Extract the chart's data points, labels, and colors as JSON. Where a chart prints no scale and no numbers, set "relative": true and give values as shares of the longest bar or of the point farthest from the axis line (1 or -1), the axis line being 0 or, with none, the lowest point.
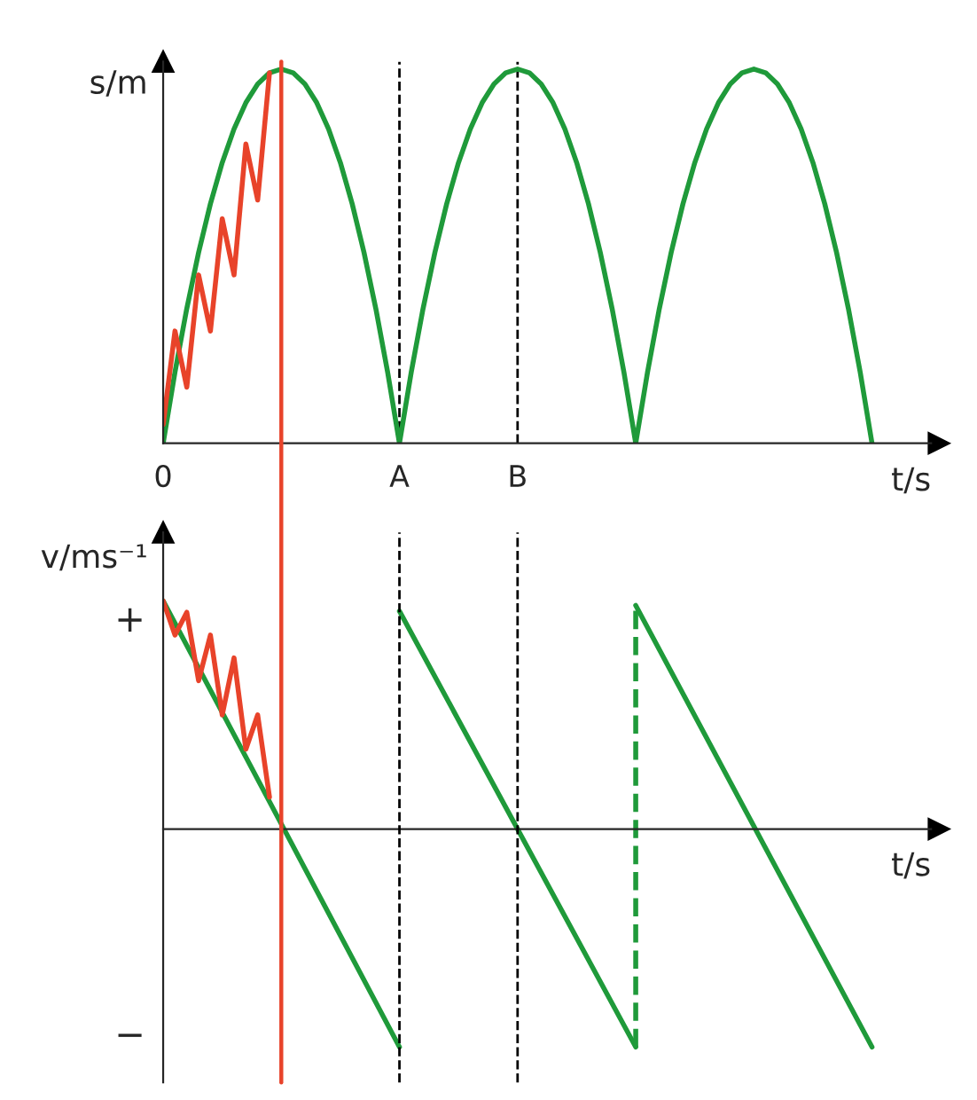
{
  "chart_data": [
    {
      "type": "line",
      "ylabel": "s/m",
      "xlabel": "t/s",
      "relative": true,
      "grid": false,
      "legend": false,
      "marker": "none",
      "line_style": "solid",
      "categories": [
        "0",
        null,
        null,
        null,
        null,
        null,
        null,
        null,
        null,
        null,
        null,
        null,
        null,
        null,
        null,
        null,
        null,
        null,
        null,
        null,
        "A",
        null,
        null,
        null,
        null,
        null,
        null,
        null,
        null,
        null,
        "B",
        null,
        null,
        null,
        null,
        null,
        null,
        null,
        null,
        null,
        null,
        null,
        null,
        null,
        null,
        null,
        null,
        null,
        null,
        null,
        null,
        null,
        null,
        null,
        null,
        null,
        null,
        null,
        null,
        null,
        null,
        null,
        null,
        null,
        null,
        null
      ],
      "series": [
        {
          "color": "#1f9a3a",
          "values": [
            0,
            0.19,
            0.36,
            0.51,
            0.64,
            0.75,
            0.84,
            0.91,
            0.96,
            0.99,
            1,
            0.99,
            0.96,
            0.91,
            0.84,
            0.75,
            0.64,
            0.51,
            0.36,
            0.19,
            0,
            0.19,
            0.36,
            0.51,
            0.64,
            0.75,
            0.84,
            0.91,
            0.96,
            0.99,
            1,
            0.99,
            0.96,
            0.91,
            0.84,
            0.75,
            0.64,
            0.51,
            0.36,
            0.19,
            0,
            0.19,
            0.36,
            0.51,
            0.64,
            0.75,
            0.84,
            0.91,
            0.96,
            0.99,
            1,
            0.99,
            0.96,
            0.91,
            0.84,
            0.75,
            0.64,
            0.51,
            0.36,
            0.19,
            0,
            null,
            null,
            null,
            null,
            null
          ]
        },
        {
          "color": "#e8432a",
          "values": [
            0.05,
            0.3,
            0.15,
            0.45,
            0.3,
            0.6,
            0.45,
            0.8,
            0.65,
            0.99,
            null,
            null,
            null,
            null,
            null,
            null,
            null,
            null,
            null,
            null,
            null,
            null,
            null,
            null,
            null,
            null,
            null,
            null,
            null,
            null,
            null,
            null,
            null,
            null,
            null,
            null,
            null,
            null,
            null,
            null,
            null,
            null,
            null,
            null,
            null,
            null,
            null,
            null,
            null,
            null,
            null,
            null,
            null,
            null,
            null,
            null,
            null,
            null,
            null,
            null,
            null,
            null,
            null,
            null,
            null,
            null
          ]
        }
      ],
      "ref_lines": [
        {
          "axis": "x",
          "value": "A",
          "color": "#000000",
          "line_style": "dashed"
        },
        {
          "axis": "x",
          "value": "B",
          "color": "#000000",
          "line_style": "dashed"
        }
      ]
    },
    {
      "type": "line",
      "ylabel": "v/ms⁻¹",
      "xlabel": "t/s",
      "relative": true,
      "grid": false,
      "legend": false,
      "marker": "none",
      "annotations": [
        "+",
        "−"
      ],
      "categories": [
        null,
        null,
        null,
        null,
        null,
        null,
        null,
        null,
        null,
        null,
        null,
        null,
        null,
        null,
        null,
        null,
        null,
        null,
        null,
        null,
        null,
        null,
        null,
        null,
        null,
        null,
        null,
        null,
        null,
        null,
        null,
        null,
        null,
        null,
        null,
        null,
        null,
        null,
        null,
        null,
        null,
        null,
        null,
        null,
        null,
        null,
        null,
        null,
        null,
        null,
        null,
        null,
        null,
        null,
        null,
        null,
        null,
        null,
        null,
        null,
        null,
        null,
        null,
        null,
        null,
        null
      ],
      "series": [
        {
          "color": "#1f9a3a",
          "line_style": "solid",
          "values": [
            1,
            null,
            null,
            null,
            null,
            null,
            null,
            null,
            null,
            null,
            null,
            null,
            null,
            null,
            null,
            null,
            null,
            null,
            null,
            null,
            -0.955,
            null,
            null,
            null,
            null,
            null,
            null,
            null,
            null,
            null,
            null,
            null,
            null,
            null,
            null,
            null,
            null,
            null,
            null,
            null,
            null,
            null,
            null,
            null,
            null,
            null,
            null,
            null,
            null,
            null,
            null,
            null,
            null,
            null,
            null,
            null,
            null,
            null,
            null,
            null,
            null,
            null,
            null,
            null,
            null,
            null
          ]
        },
        {
          "color": "#1f9a3a",
          "line_style": "solid",
          "values": [
            null,
            null,
            null,
            null,
            null,
            null,
            null,
            null,
            null,
            null,
            null,
            null,
            null,
            null,
            null,
            null,
            null,
            null,
            null,
            null,
            0.955,
            null,
            null,
            null,
            null,
            null,
            null,
            null,
            null,
            null,
            null,
            null,
            null,
            null,
            null,
            null,
            null,
            null,
            null,
            null,
            -0.955,
            null,
            null,
            null,
            null,
            null,
            null,
            null,
            null,
            null,
            null,
            null,
            null,
            null,
            null,
            null,
            null,
            null,
            null,
            null,
            null,
            null,
            null,
            null,
            null,
            null
          ]
        },
        {
          "color": "#1f9a3a",
          "line_style": "solid",
          "values": [
            null,
            null,
            null,
            null,
            null,
            null,
            null,
            null,
            null,
            null,
            null,
            null,
            null,
            null,
            null,
            null,
            null,
            null,
            null,
            null,
            null,
            null,
            null,
            null,
            null,
            null,
            null,
            null,
            null,
            null,
            null,
            null,
            null,
            null,
            null,
            null,
            null,
            null,
            null,
            null,
            0.98,
            null,
            null,
            null,
            null,
            null,
            null,
            null,
            null,
            null,
            null,
            null,
            null,
            null,
            null,
            null,
            null,
            null,
            null,
            null,
            -0.955,
            null,
            null,
            null,
            null,
            null
          ]
        },
        {
          "color": "#e8432a",
          "line_style": "solid",
          "values": [
            1,
            0.85,
            0.95,
            0.65,
            0.85,
            0.5,
            0.75,
            0.35,
            0.5,
            0.14,
            null,
            null,
            null,
            null,
            null,
            null,
            null,
            null,
            null,
            null,
            null,
            null,
            null,
            null,
            null,
            null,
            null,
            null,
            null,
            null,
            null,
            null,
            null,
            null,
            null,
            null,
            null,
            null,
            null,
            null,
            null,
            null,
            null,
            null,
            null,
            null,
            null,
            null,
            null,
            null,
            null,
            null,
            null,
            null,
            null,
            null,
            null,
            null,
            null,
            null,
            null,
            null,
            null,
            null,
            null,
            null
          ]
        }
      ]
    }
  ]
}
